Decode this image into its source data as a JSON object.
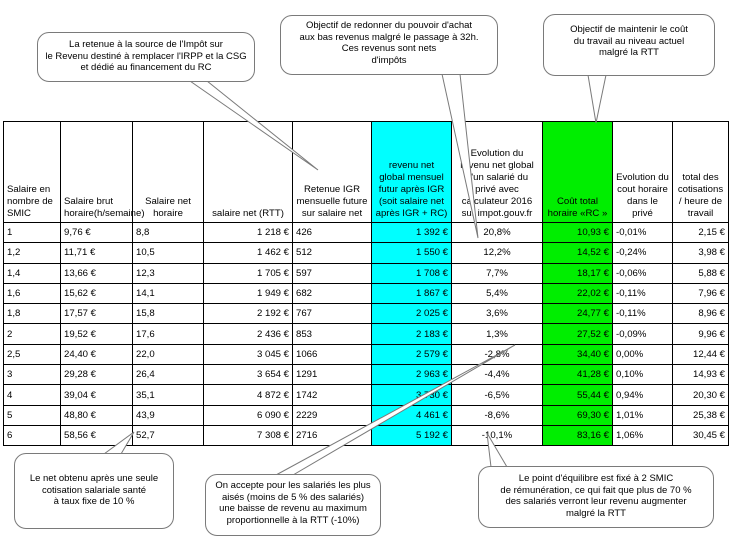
{
  "callouts": {
    "top_left": "La retenue à la source de l'Impôt sur\nle Revenu destiné à remplacer l'IRPP et la CSG\net dédié au financement du RC",
    "top_middle": "Objectif de redonner du pouvoir d'achat\naux bas revenus malgré le passage à 32h.\nCes revenus sont nets\nd'impôts",
    "top_right": "Objectif de maintenir le coût\ndu travail au niveau actuel\nmalgré la RTT",
    "bottom_left": "Le net obtenu après une seule\ncotisation salariale santé\nà taux fixe de 10 %",
    "bottom_middle": "On accepte pour les salariés les plus\naisés (moins de 5 % des salariés)\nune baisse de revenu au maximum\nproportionnelle à la RTT (-10%)",
    "bottom_right": "Le point d'équilibre est fixé à 2 SMIC\nde rémunération, ce qui fait que plus de 70 %\ndes salariés verront leur revenu augmenter\nmalgré la RTT"
  },
  "table": {
    "headers": [
      "Salaire en nombre de SMIC",
      "Salaire brut horaire(h/semaine)",
      "Salaire net horaire",
      "salaire net (RTT)",
      "Retenue IGR mensuelle future sur salaire net",
      "revenu net global mensuel futur après IGR (soit salaire net après IGR + RC)",
      "Evolution du revenu net global d'un salarié du privé avec calculateur 2016 sur impot.gouv.fr",
      "Coût total horaire «RC »",
      "Evolution du cout horaire dans le privé",
      "total des cotisations / heure de travail"
    ],
    "rows": [
      [
        "1",
        "9,76 €",
        "8,8",
        "1 218 €",
        "426",
        "1 392 €",
        "20,8%",
        "10,93 €",
        "-0,01%",
        "2,15 €"
      ],
      [
        "1,2",
        "11,71 €",
        "10,5",
        "1 462 €",
        "512",
        "1 550 €",
        "12,2%",
        "14,52 €",
        "-0,24%",
        "3,98 €"
      ],
      [
        "1,4",
        "13,66 €",
        "12,3",
        "1 705 €",
        "597",
        "1 708 €",
        "7,7%",
        "18,17 €",
        "-0,06%",
        "5,88 €"
      ],
      [
        "1,6",
        "15,62 €",
        "14,1",
        "1 949 €",
        "682",
        "1 867 €",
        "5,4%",
        "22,02 €",
        "-0,11%",
        "7,96 €"
      ],
      [
        "1,8",
        "17,57 €",
        "15,8",
        "2 192 €",
        "767",
        "2 025 €",
        "3,6%",
        "24,77 €",
        "-0,11%",
        "8,96 €"
      ],
      [
        "2",
        "19,52 €",
        "17,6",
        "2 436 €",
        "853",
        "2 183 €",
        "1,3%",
        "27,52 €",
        "-0,09%",
        "9,96 €"
      ],
      [
        "2,5",
        "24,40 €",
        "22,0",
        "3 045 €",
        "1066",
        "2 579 €",
        "-2,8%",
        "34,40 €",
        "0,00%",
        "12,44 €"
      ],
      [
        "3",
        "29,28 €",
        "26,4",
        "3 654 €",
        "1291",
        "2 963 €",
        "-4,4%",
        "41,28 €",
        "0,10%",
        "14,93 €"
      ],
      [
        "4",
        "39,04 €",
        "35,1",
        "4 872 €",
        "1742",
        "3 730 €",
        "-6,5%",
        "55,44 €",
        "0,94%",
        "20,30 €"
      ],
      [
        "5",
        "48,80 €",
        "43,9",
        "6 090 €",
        "2229",
        "4 461 €",
        "-8,6%",
        "69,30 €",
        "1,01%",
        "25,38 €"
      ],
      [
        "6",
        "58,56 €",
        "52,7",
        "7 308 €",
        "2716",
        "5 192 €",
        "-10,1%",
        "83,16 €",
        "1,06%",
        "30,45 €"
      ]
    ],
    "highlight_colors": {
      "revenu_net_global": "#00ffff",
      "cout_total": "#00ee00"
    }
  }
}
